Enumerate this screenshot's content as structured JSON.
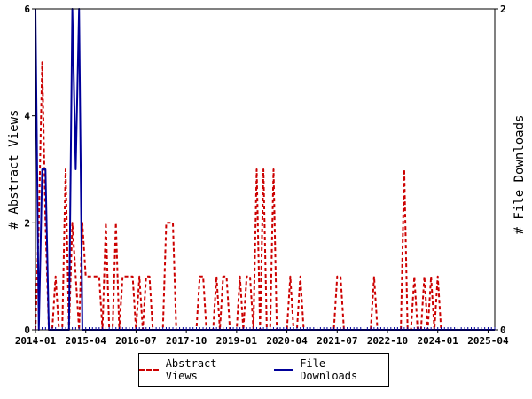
{
  "chart_data": {
    "type": "line",
    "x_ticks": [
      "2014-01",
      "2015-04",
      "2016-07",
      "2017-10",
      "2019-01",
      "2020-04",
      "2021-07",
      "2022-10",
      "2024-01",
      "2025-04"
    ],
    "x_range": [
      "2014-01",
      "2025-06"
    ],
    "y_left": {
      "label": "# Abstract Views",
      "range": [
        0,
        6
      ],
      "ticks": [
        "0",
        "2",
        "4",
        "6"
      ]
    },
    "y_right": {
      "label": "# File Downloads",
      "range": [
        0,
        2
      ],
      "ticks": [
        "0",
        "2"
      ]
    },
    "grid": false,
    "legend_position": "bottom",
    "series": [
      {
        "name": "Abstract Views",
        "axis": "left",
        "color": "#cc0000",
        "style": "dashed",
        "points": [
          [
            "2014-01",
            0
          ],
          [
            "2014-02",
            2
          ],
          [
            "2014-03",
            5
          ],
          [
            "2014-04",
            2
          ],
          [
            "2014-05",
            0
          ],
          [
            "2014-06",
            0
          ],
          [
            "2014-07",
            1
          ],
          [
            "2014-08",
            0
          ],
          [
            "2014-09",
            0
          ],
          [
            "2014-10",
            3
          ],
          [
            "2014-11",
            0
          ],
          [
            "2014-12",
            2
          ],
          [
            "2015-01",
            1
          ],
          [
            "2015-02",
            0
          ],
          [
            "2015-03",
            2
          ],
          [
            "2015-04",
            1
          ],
          [
            "2015-05",
            1
          ],
          [
            "2015-06",
            1
          ],
          [
            "2015-07",
            1
          ],
          [
            "2015-08",
            1
          ],
          [
            "2015-09",
            0
          ],
          [
            "2015-10",
            2
          ],
          [
            "2015-11",
            0
          ],
          [
            "2015-12",
            0
          ],
          [
            "2016-01",
            2
          ],
          [
            "2016-02",
            0
          ],
          [
            "2016-03",
            1
          ],
          [
            "2016-04",
            1
          ],
          [
            "2016-05",
            1
          ],
          [
            "2016-06",
            1
          ],
          [
            "2016-07",
            0
          ],
          [
            "2016-08",
            1
          ],
          [
            "2016-09",
            0
          ],
          [
            "2016-10",
            1
          ],
          [
            "2016-11",
            1
          ],
          [
            "2016-12",
            0
          ],
          [
            "2017-01",
            0
          ],
          [
            "2017-02",
            0
          ],
          [
            "2017-03",
            0
          ],
          [
            "2017-04",
            2
          ],
          [
            "2017-05",
            2
          ],
          [
            "2017-06",
            2
          ],
          [
            "2017-07",
            0
          ],
          [
            "2017-08",
            0
          ],
          [
            "2017-09",
            0
          ],
          [
            "2017-10",
            0
          ],
          [
            "2017-11",
            0
          ],
          [
            "2017-12",
            0
          ],
          [
            "2018-01",
            0
          ],
          [
            "2018-02",
            1
          ],
          [
            "2018-03",
            1
          ],
          [
            "2018-04",
            0
          ],
          [
            "2018-05",
            0
          ],
          [
            "2018-06",
            0
          ],
          [
            "2018-07",
            1
          ],
          [
            "2018-08",
            0
          ],
          [
            "2018-09",
            1
          ],
          [
            "2018-10",
            1
          ],
          [
            "2018-11",
            0
          ],
          [
            "2018-12",
            0
          ],
          [
            "2019-01",
            0
          ],
          [
            "2019-02",
            1
          ],
          [
            "2019-03",
            0
          ],
          [
            "2019-04",
            1
          ],
          [
            "2019-05",
            1
          ],
          [
            "2019-06",
            0
          ],
          [
            "2019-07",
            3
          ],
          [
            "2019-08",
            0
          ],
          [
            "2019-09",
            3
          ],
          [
            "2019-10",
            0
          ],
          [
            "2019-11",
            0
          ],
          [
            "2019-12",
            3
          ],
          [
            "2020-01",
            0
          ],
          [
            "2020-02",
            0
          ],
          [
            "2020-03",
            0
          ],
          [
            "2020-04",
            0
          ],
          [
            "2020-05",
            1
          ],
          [
            "2020-06",
            0
          ],
          [
            "2020-07",
            0
          ],
          [
            "2020-08",
            1
          ],
          [
            "2020-09",
            0
          ],
          [
            "2020-10",
            0
          ],
          [
            "2020-11",
            0
          ],
          [
            "2020-12",
            0
          ],
          [
            "2021-01",
            0
          ],
          [
            "2021-02",
            0
          ],
          [
            "2021-03",
            0
          ],
          [
            "2021-04",
            0
          ],
          [
            "2021-05",
            0
          ],
          [
            "2021-06",
            0
          ],
          [
            "2021-07",
            1
          ],
          [
            "2021-08",
            1
          ],
          [
            "2021-09",
            0
          ],
          [
            "2021-10",
            0
          ],
          [
            "2021-11",
            0
          ],
          [
            "2021-12",
            0
          ],
          [
            "2022-01",
            0
          ],
          [
            "2022-02",
            0
          ],
          [
            "2022-03",
            0
          ],
          [
            "2022-04",
            0
          ],
          [
            "2022-05",
            0
          ],
          [
            "2022-06",
            1
          ],
          [
            "2022-07",
            0
          ],
          [
            "2022-08",
            0
          ],
          [
            "2022-09",
            0
          ],
          [
            "2022-10",
            0
          ],
          [
            "2022-11",
            0
          ],
          [
            "2022-12",
            0
          ],
          [
            "2023-01",
            0
          ],
          [
            "2023-02",
            0
          ],
          [
            "2023-03",
            3
          ],
          [
            "2023-04",
            0
          ],
          [
            "2023-05",
            0
          ],
          [
            "2023-06",
            1
          ],
          [
            "2023-07",
            0
          ],
          [
            "2023-08",
            0
          ],
          [
            "2023-09",
            1
          ],
          [
            "2023-10",
            0
          ],
          [
            "2023-11",
            1
          ],
          [
            "2023-12",
            0
          ],
          [
            "2024-01",
            1
          ],
          [
            "2024-02",
            0
          ],
          [
            "2024-03",
            0
          ],
          [
            "2024-04",
            0
          ],
          [
            "2024-05",
            0
          ],
          [
            "2024-06",
            0
          ],
          [
            "2024-07",
            0
          ],
          [
            "2024-08",
            0
          ],
          [
            "2024-09",
            0
          ],
          [
            "2024-10",
            0
          ],
          [
            "2024-11",
            0
          ],
          [
            "2024-12",
            0
          ],
          [
            "2025-01",
            0
          ],
          [
            "2025-02",
            0
          ],
          [
            "2025-03",
            0
          ],
          [
            "2025-04",
            0
          ],
          [
            "2025-05",
            0
          ],
          [
            "2025-06",
            0
          ]
        ]
      },
      {
        "name": "File Downloads",
        "axis": "right",
        "color": "#000099",
        "style": "solid",
        "points": [
          [
            "2014-01",
            2
          ],
          [
            "2014-02",
            0
          ],
          [
            "2014-03",
            1
          ],
          [
            "2014-04",
            1
          ],
          [
            "2014-05",
            0
          ],
          [
            "2014-06",
            0
          ],
          [
            "2014-07",
            0
          ],
          [
            "2014-08",
            0
          ],
          [
            "2014-09",
            0
          ],
          [
            "2014-10",
            0
          ],
          [
            "2014-11",
            0
          ],
          [
            "2014-12",
            2
          ],
          [
            "2015-01",
            1
          ],
          [
            "2015-02",
            2
          ],
          [
            "2015-03",
            0
          ],
          [
            "2015-04",
            0
          ],
          [
            "2015-05",
            0
          ],
          [
            "2015-06",
            0
          ],
          [
            "2015-07",
            0
          ],
          [
            "2015-08",
            0
          ],
          [
            "2015-09",
            0
          ],
          [
            "2015-10",
            0
          ],
          [
            "2015-11",
            0
          ],
          [
            "2015-12",
            0
          ],
          [
            "2016-01",
            0
          ],
          [
            "2016-06",
            0
          ],
          [
            "2017-01",
            0
          ],
          [
            "2018-01",
            0
          ],
          [
            "2019-01",
            0
          ],
          [
            "2020-01",
            0
          ],
          [
            "2021-01",
            0
          ],
          [
            "2022-01",
            0
          ],
          [
            "2023-01",
            0
          ],
          [
            "2024-01",
            0
          ],
          [
            "2025-01",
            0
          ],
          [
            "2025-06",
            0
          ]
        ]
      }
    ]
  }
}
